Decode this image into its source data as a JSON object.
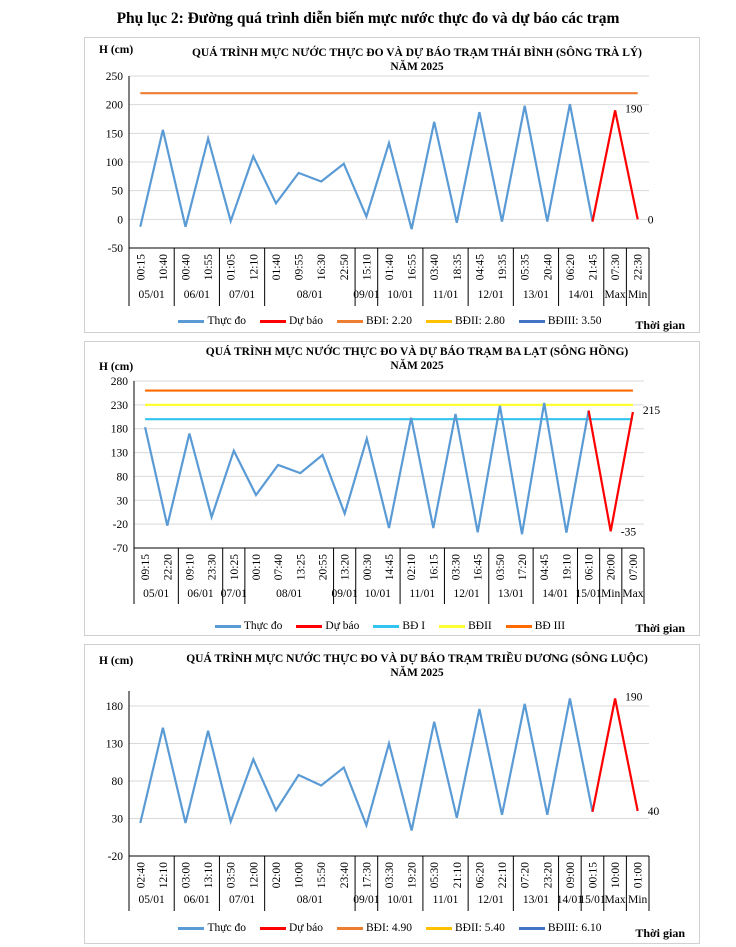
{
  "page_title": "Phụ lục 2: Đường quá trình diễn biến mực nước thực đo và dự báo các trạm",
  "chart_data": [
    {
      "type": "line",
      "title": "QUÁ TRÌNH MỰC NƯỚC THỰC ĐO VÀ DỰ BÁO TRẠM THÁI BÌNH (SÔNG TRÀ LÝ)",
      "subtitle": "NĂM 2025",
      "ylabel": "H (cm)",
      "xlabel": "Thời gian",
      "ylim": [
        -50,
        250
      ],
      "yticks": [
        -50,
        0,
        50,
        100,
        150,
        200,
        250
      ],
      "grid": true,
      "legend_position": "bottom",
      "categories": [
        "00:15",
        "10:40",
        "00:40",
        "10:55",
        "01:05",
        "12:10",
        "01:40",
        "09:55",
        "16:30",
        "22:50",
        "15:10",
        "01:40",
        "16:55",
        "03:40",
        "18:35",
        "04:45",
        "19:35",
        "05:35",
        "20:40",
        "06:20",
        "21:45",
        "07:30",
        "22:30"
      ],
      "groups": [
        {
          "label": "05/01",
          "count": 2
        },
        {
          "label": "06/01",
          "count": 2
        },
        {
          "label": "07/01",
          "count": 2
        },
        {
          "label": "08/01",
          "count": 4
        },
        {
          "label": "09/01",
          "count": 1
        },
        {
          "label": "10/01",
          "count": 2
        },
        {
          "label": "11/01",
          "count": 2
        },
        {
          "label": "12/01",
          "count": 2
        },
        {
          "label": "13/01",
          "count": 2
        },
        {
          "label": "14/01",
          "count": 2
        },
        {
          "label": "Max",
          "count": 1
        },
        {
          "label": "Min",
          "count": 1
        }
      ],
      "series": [
        {
          "name": "Thực đo",
          "color": "#5b9bd5",
          "values": [
            -13,
            156,
            -13,
            141,
            -3,
            110,
            28,
            81,
            66,
            97,
            5,
            133,
            -17,
            170,
            -6,
            187,
            -4,
            198,
            -4,
            201,
            -4,
            null,
            null
          ]
        },
        {
          "name": "Dự báo",
          "color": "#ff0000",
          "values": [
            null,
            null,
            null,
            null,
            null,
            null,
            null,
            null,
            null,
            null,
            null,
            null,
            null,
            null,
            null,
            null,
            null,
            null,
            null,
            null,
            -4,
            190,
            0
          ]
        }
      ],
      "levels": [
        {
          "name": "BĐI: 2.20",
          "color": "#ed7d31",
          "value": 220
        },
        {
          "name": "BĐII: 2.80",
          "color": "#ffc000",
          "value": 280
        },
        {
          "name": "BĐIII: 3.50",
          "color": "#4472c4",
          "value": 350
        }
      ],
      "data_labels": [
        {
          "index": 21,
          "text": "190"
        },
        {
          "index": 22,
          "text": "0"
        }
      ]
    },
    {
      "type": "line",
      "title": "QUÁ TRÌNH MỰC NƯỚC THỰC ĐO VÀ DỰ BÁO TRẠM BA LẠT (SÔNG HỒNG)",
      "subtitle": "NĂM 2025",
      "ylabel": "H (cm)",
      "xlabel": "Thời gian",
      "ylim": [
        -70,
        280
      ],
      "yticks": [
        -70,
        -20,
        30,
        80,
        130,
        180,
        230,
        280
      ],
      "grid": true,
      "legend_position": "bottom",
      "categories": [
        "09:15",
        "22:20",
        "09:10",
        "23:30",
        "10:25",
        "00:10",
        "07:40",
        "13:25",
        "20:55",
        "13:20",
        "00:30",
        "14:45",
        "02:10",
        "16:15",
        "03:30",
        "16:45",
        "03:50",
        "17:20",
        "04:45",
        "19:10",
        "06:10",
        "20:00",
        "07:00"
      ],
      "groups": [
        {
          "label": "05/01",
          "count": 2
        },
        {
          "label": "06/01",
          "count": 2
        },
        {
          "label": "07/01",
          "count": 1
        },
        {
          "label": "08/01",
          "count": 4
        },
        {
          "label": "09/01",
          "count": 1
        },
        {
          "label": "10/01",
          "count": 2
        },
        {
          "label": "11/01",
          "count": 2
        },
        {
          "label": "12/01",
          "count": 2
        },
        {
          "label": "13/01",
          "count": 2
        },
        {
          "label": "14/01",
          "count": 2
        },
        {
          "label": "15/01",
          "count": 1
        },
        {
          "label": "Min",
          "count": 1
        },
        {
          "label": "Max",
          "count": 1
        }
      ],
      "series": [
        {
          "name": "Thực đo",
          "color": "#5b9bd5",
          "values": [
            183,
            -23,
            170,
            -5,
            134,
            41,
            104,
            87,
            125,
            2,
            159,
            -28,
            203,
            -28,
            211,
            -37,
            228,
            -41,
            234,
            -38,
            218,
            null,
            null
          ]
        },
        {
          "name": "Dự báo",
          "color": "#ff0000",
          "values": [
            null,
            null,
            null,
            null,
            null,
            null,
            null,
            null,
            null,
            null,
            null,
            null,
            null,
            null,
            null,
            null,
            null,
            null,
            null,
            null,
            218,
            -35,
            215
          ]
        }
      ],
      "levels": [
        {
          "name": "BĐ I",
          "color": "#33c3f0",
          "value": 200
        },
        {
          "name": "BĐII",
          "color": "#ffff33",
          "value": 230
        },
        {
          "name": "BĐ III",
          "color": "#ff6a00",
          "value": 260
        }
      ],
      "data_labels": [
        {
          "index": 21,
          "text": "-35"
        },
        {
          "index": 22,
          "text": "215"
        }
      ]
    },
    {
      "type": "line",
      "title": "QUÁ TRÌNH MỰC NƯỚC THỰC ĐO VÀ DỰ BÁO TRẠM TRIỀU DƯƠNG (SÔNG LUỘC)",
      "subtitle": "NĂM 2025",
      "ylabel": "H (cm)",
      "xlabel": "Thời gian",
      "ylim": [
        -20,
        200
      ],
      "yticks": [
        -20,
        30,
        80,
        130,
        180
      ],
      "grid": true,
      "legend_position": "bottom",
      "categories": [
        "02:40",
        "12:10",
        "03:00",
        "13:10",
        "03:50",
        "12:00",
        "02:00",
        "10:00",
        "15:50",
        "23:40",
        "17:30",
        "03:30",
        "19:20",
        "05:30",
        "21:10",
        "06:20",
        "22:10",
        "07:20",
        "23:20",
        "09:00",
        "00:15",
        "10:00",
        "01:00"
      ],
      "groups": [
        {
          "label": "05/01",
          "count": 2
        },
        {
          "label": "06/01",
          "count": 2
        },
        {
          "label": "07/01",
          "count": 2
        },
        {
          "label": "08/01",
          "count": 4
        },
        {
          "label": "09/01",
          "count": 1
        },
        {
          "label": "10/01",
          "count": 2
        },
        {
          "label": "11/01",
          "count": 2
        },
        {
          "label": "12/01",
          "count": 2
        },
        {
          "label": "13/01",
          "count": 2
        },
        {
          "label": "14/01",
          "count": 1
        },
        {
          "label": "15/01",
          "count": 1
        },
        {
          "label": "Max",
          "count": 1
        },
        {
          "label": "Min",
          "count": 1
        }
      ],
      "series": [
        {
          "name": "Thực đo",
          "color": "#5b9bd5",
          "values": [
            24,
            151,
            24,
            147,
            26,
            109,
            41,
            88,
            74,
            98,
            21,
            130,
            14,
            159,
            31,
            176,
            35,
            183,
            35,
            190,
            39,
            null,
            null
          ]
        },
        {
          "name": "Dự báo",
          "color": "#ff0000",
          "values": [
            null,
            null,
            null,
            null,
            null,
            null,
            null,
            null,
            null,
            null,
            null,
            null,
            null,
            null,
            null,
            null,
            null,
            null,
            null,
            null,
            39,
            190,
            40
          ]
        }
      ],
      "levels": [
        {
          "name": "BĐI: 4.90",
          "color": "#ed7d31",
          "value": 490
        },
        {
          "name": "BĐII: 5.40",
          "color": "#ffc000",
          "value": 540
        },
        {
          "name": "BĐIII: 6.10",
          "color": "#4472c4",
          "value": 610
        }
      ],
      "data_labels": [
        {
          "index": 21,
          "text": "190"
        },
        {
          "index": 22,
          "text": "40"
        }
      ]
    }
  ]
}
